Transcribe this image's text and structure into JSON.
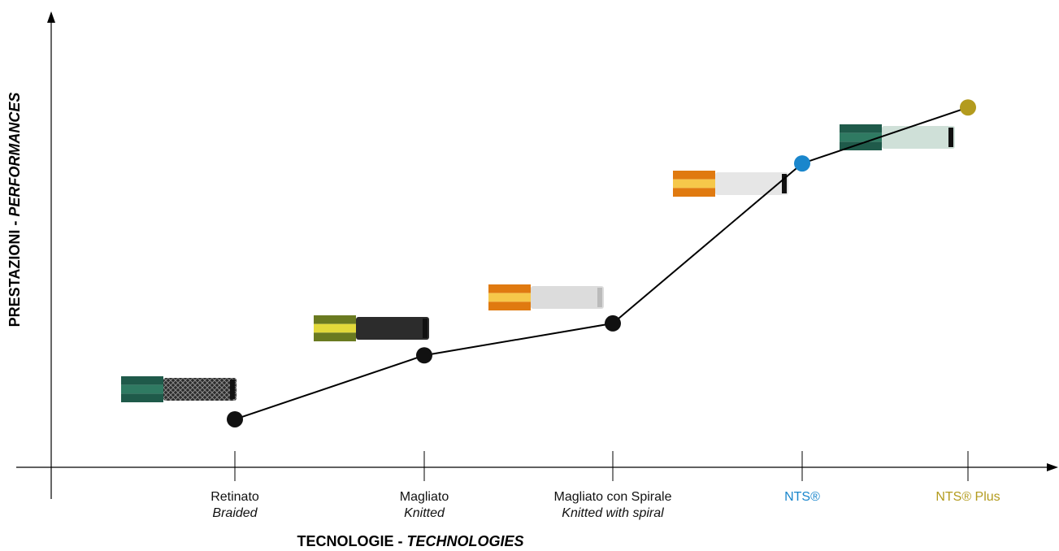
{
  "chart_data": {
    "type": "line",
    "x_title_main": "TECNOLOGIE - ",
    "x_title_italic": "TECHNOLOGIES",
    "y_title_main": "PRESTAZIONI - ",
    "y_title_italic": "PERFORMANCES",
    "categories": [
      {
        "label": "Retinato",
        "sublabel": "Braided",
        "color": "#111111",
        "label_color": "#111111",
        "hose": "braided-hose"
      },
      {
        "label": "Magliato",
        "sublabel": "Knitted",
        "color": "#111111",
        "label_color": "#111111",
        "hose": "knitted-hose"
      },
      {
        "label": "Magliato con Spirale",
        "sublabel": "Knitted with spiral",
        "color": "#111111",
        "label_color": "#111111",
        "hose": "knitted-spiral-hose"
      },
      {
        "label": "NTS®",
        "sublabel": "",
        "color": "#1a86cc",
        "label_color": "#1a86cc",
        "hose": "nts-hose"
      },
      {
        "label": "NTS® Plus",
        "sublabel": "",
        "color": "#b39b1e",
        "label_color": "#b39b1e",
        "hose": "nts-plus-hose"
      }
    ],
    "values": [
      1.0,
      1.4,
      1.6,
      2.6,
      2.95
    ],
    "ylim": [
      0.7,
      3.5
    ],
    "grid": false,
    "legend": "none"
  }
}
